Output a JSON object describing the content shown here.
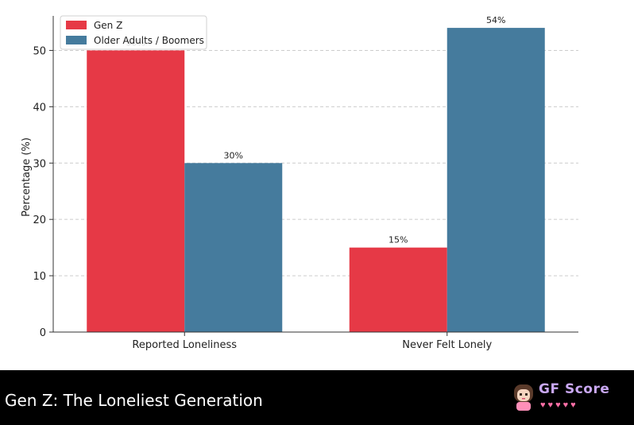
{
  "chart_data": {
    "type": "bar",
    "categories": [
      "Reported Loneliness",
      "Never Felt Lonely"
    ],
    "series": [
      {
        "name": "Gen Z",
        "values": [
          50,
          15
        ],
        "labels": [
          "50%",
          "15%"
        ],
        "color": "#e63946"
      },
      {
        "name": "Older Adults / Boomers",
        "values": [
          30,
          54
        ],
        "labels": [
          "30%",
          "54%"
        ],
        "color": "#457b9d"
      }
    ],
    "ylabel": "Percentage (%)",
    "ylim": [
      0,
      55
    ],
    "yticks": [
      0,
      10,
      20,
      30,
      40,
      50
    ],
    "grid": "y-dashed",
    "legend": "top-left"
  },
  "footer": {
    "title": "Gen Z: The Loneliest Generation",
    "brand": "GF Score",
    "brand_hearts": "♥♥♥♥♥"
  }
}
